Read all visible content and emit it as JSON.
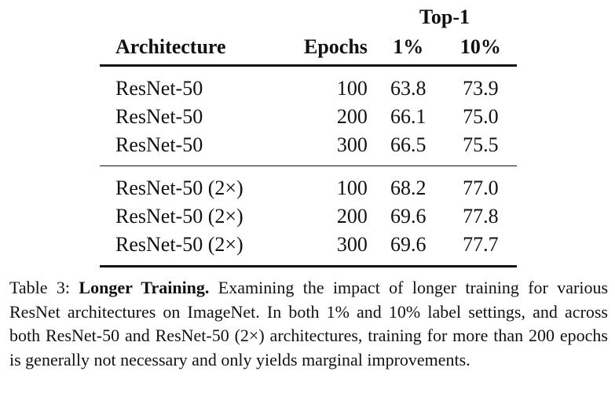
{
  "table": {
    "group_header": "Top-1",
    "columns": [
      "Architecture",
      "Epochs",
      "1%",
      "10%"
    ],
    "groups": [
      [
        {
          "arch": "ResNet-50",
          "epochs": "100",
          "t1": "63.8",
          "t10": "73.9"
        },
        {
          "arch": "ResNet-50",
          "epochs": "200",
          "t1": "66.1",
          "t10": "75.0"
        },
        {
          "arch": "ResNet-50",
          "epochs": "300",
          "t1": "66.5",
          "t10": "75.5"
        }
      ],
      [
        {
          "arch": "ResNet-50 (2×)",
          "epochs": "100",
          "t1": "68.2",
          "t10": "77.0"
        },
        {
          "arch": "ResNet-50 (2×)",
          "epochs": "200",
          "t1": "69.6",
          "t10": "77.8"
        },
        {
          "arch": "ResNet-50 (2×)",
          "epochs": "300",
          "t1": "69.6",
          "t10": "77.7"
        }
      ]
    ]
  },
  "caption": {
    "label": "Table 3:",
    "title": "Longer Training.",
    "text": "Examining the impact of longer training for various ResNet architectures on ImageNet. In both 1% and 10% label settings, and across both ResNet-50 and ResNet-50 (2×) architectures, training for more than 200 epochs is generally not necessary and only yields marginal improvements."
  }
}
